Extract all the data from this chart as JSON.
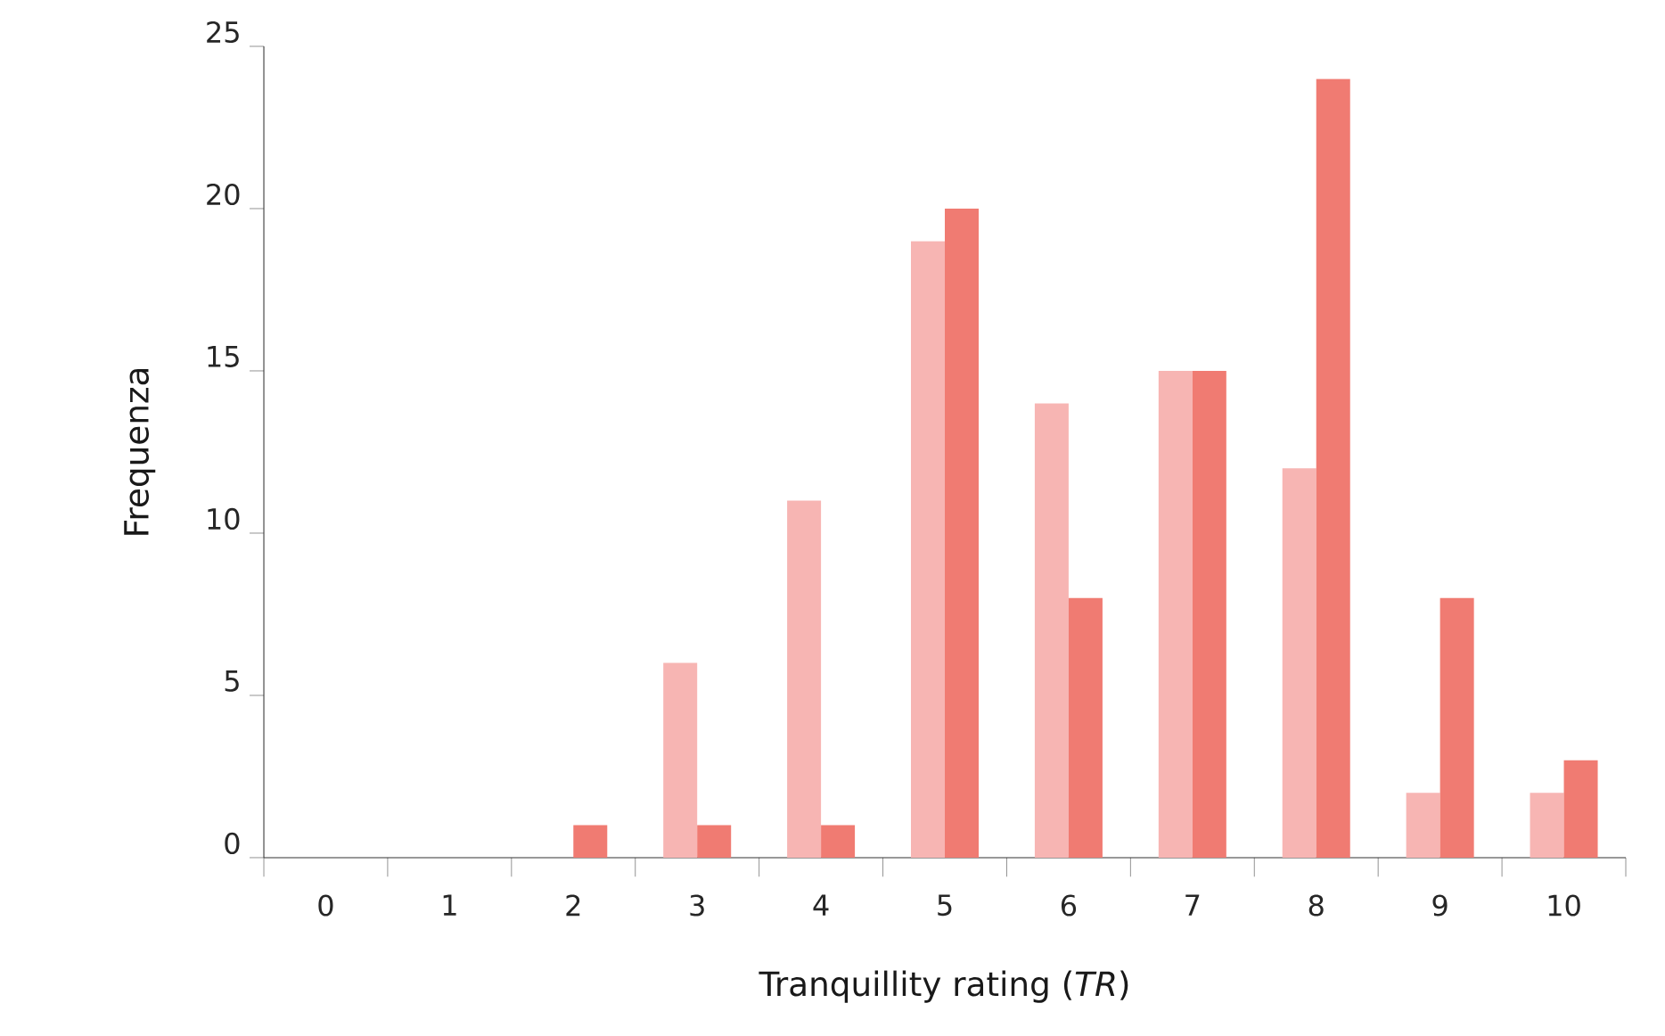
{
  "chart_data": {
    "type": "bar",
    "xlabel": "Tranquillity rating (*TR*)",
    "ylabel": "Frequenza",
    "categories": [
      "0",
      "1",
      "2",
      "3",
      "4",
      "5",
      "6",
      "7",
      "8",
      "9",
      "10"
    ],
    "series": [
      {
        "color": "#f7b5b3",
        "values": [
          0,
          0,
          0,
          6,
          11,
          19,
          14,
          15,
          12,
          2,
          2
        ]
      },
      {
        "color": "#f07b72",
        "values": [
          0,
          0,
          1,
          1,
          1,
          20,
          8,
          15,
          24,
          8,
          3
        ]
      }
    ],
    "ylim": [
      0,
      25
    ],
    "yticks": [
      0,
      5,
      10,
      15,
      20,
      25
    ]
  }
}
